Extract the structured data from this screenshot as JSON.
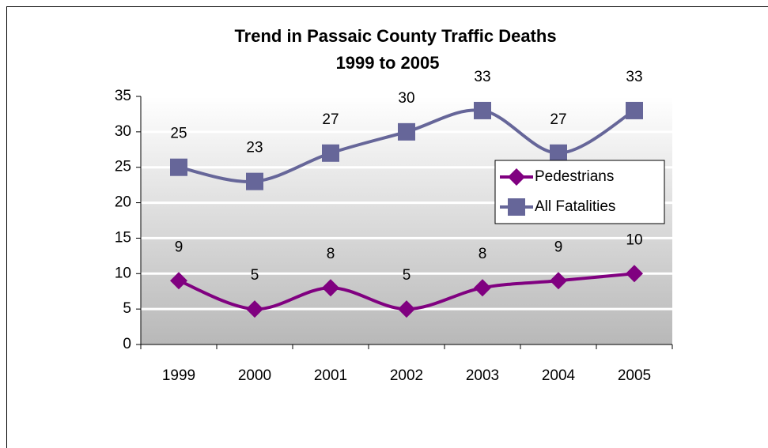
{
  "chart_data": {
    "type": "line",
    "title": [
      "Trend in Passaic County Traffic Deaths",
      "1999 to 2005"
    ],
    "categories": [
      "1999",
      "2000",
      "2001",
      "2002",
      "2003",
      "2004",
      "2005"
    ],
    "series": [
      {
        "name": "Pedestrians",
        "color": "#800080",
        "marker": "diamond",
        "values": [
          9,
          5,
          8,
          5,
          8,
          9,
          10
        ]
      },
      {
        "name": "All Fatalities",
        "color": "#666699",
        "marker": "square",
        "values": [
          25,
          23,
          27,
          30,
          33,
          27,
          33
        ]
      }
    ],
    "ylim": [
      0,
      35
    ],
    "yticks": [
      0,
      5,
      10,
      15,
      20,
      25,
      30,
      35
    ],
    "grid": true,
    "smooth": true,
    "legend": "right"
  }
}
